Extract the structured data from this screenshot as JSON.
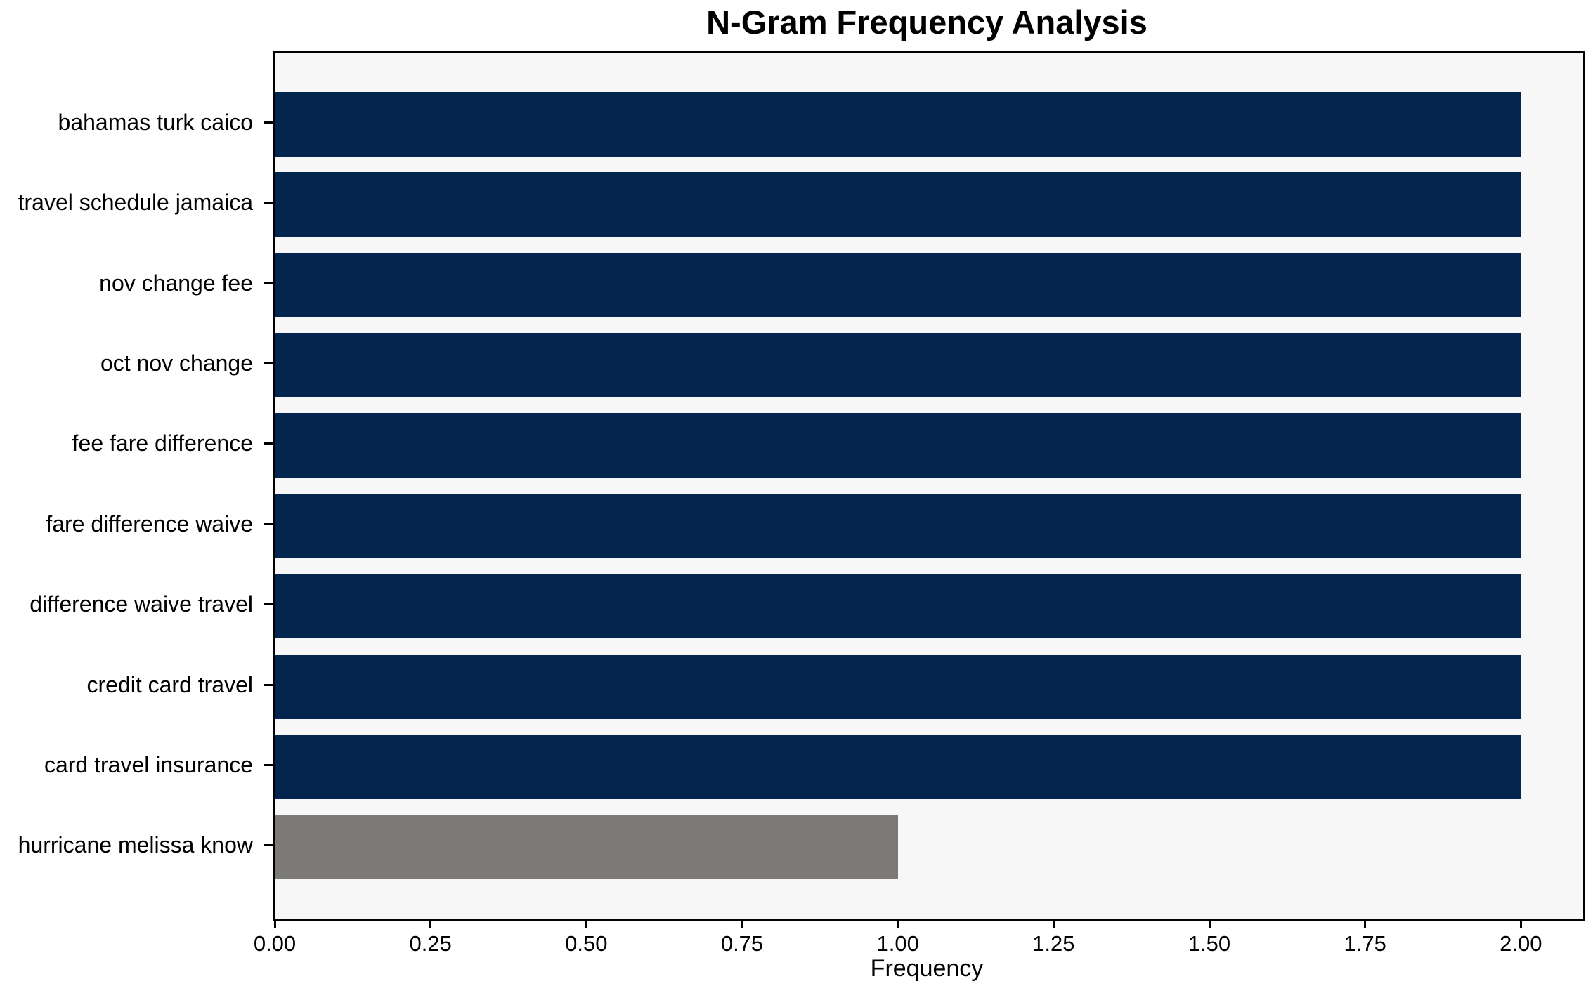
{
  "chart_data": {
    "type": "bar",
    "orientation": "horizontal",
    "title": "N-Gram Frequency Analysis",
    "xlabel": "Frequency",
    "ylabel": "",
    "categories": [
      "bahamas turk caico",
      "travel schedule jamaica",
      "nov change fee",
      "oct nov change",
      "fee fare difference",
      "fare difference waive",
      "difference waive travel",
      "credit card travel",
      "card travel insurance",
      "hurricane melissa know"
    ],
    "values": [
      2,
      2,
      2,
      2,
      2,
      2,
      2,
      2,
      2,
      1
    ],
    "bar_colors": [
      "#03254e",
      "#03254e",
      "#03254e",
      "#03254e",
      "#03254e",
      "#03254e",
      "#03254e",
      "#03254e",
      "#03254e",
      "#7b7a77"
    ],
    "xlim": [
      0,
      2.1
    ],
    "xticks": [
      0,
      0.25,
      0.5,
      0.75,
      1.0,
      1.25,
      1.5,
      1.75,
      2.0
    ],
    "xtick_labels": [
      "0.00",
      "0.25",
      "0.50",
      "0.75",
      "1.00",
      "1.25",
      "1.50",
      "1.75",
      "2.00"
    ],
    "grid": false,
    "legend": null,
    "colors": {
      "plot_background": "#f7f7f7",
      "figure_background": "#ffffff",
      "spine": "#000000",
      "text": "#000000"
    }
  }
}
